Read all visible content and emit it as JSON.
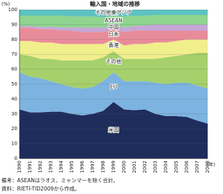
{
  "chart_data": {
    "type": "stacked_area",
    "title": "輸入国・地域の推移",
    "ylabel": "(%)",
    "xlabel": "(年)",
    "categories": [
      "1990",
      "1991",
      "1992",
      "1993",
      "1994",
      "1995",
      "1996",
      "1997",
      "1998",
      "1999",
      "2000",
      "2001",
      "2002",
      "2003",
      "2004",
      "2005",
      "2006",
      "2007",
      "2008"
    ],
    "series": [
      {
        "name": "米国",
        "color": "#1f2d5c",
        "values": [
          33,
          31,
          31,
          31.5,
          31.5,
          30,
          29,
          30,
          32,
          38,
          33,
          32.5,
          33,
          30,
          28.5,
          28.5,
          28,
          25.5,
          23.5
        ]
      },
      {
        "name": "EU",
        "color": "#7db3e0",
        "values": [
          25,
          24,
          23,
          20.5,
          18.5,
          18,
          18,
          18,
          20,
          20,
          19,
          19.5,
          19,
          21,
          21.5,
          22.5,
          23,
          23.5,
          23.5
        ]
      },
      {
        "name": "その他",
        "color": "#a6d06b",
        "values": [
          12,
          14,
          13,
          15,
          16,
          18,
          19,
          18,
          16,
          14,
          15,
          15,
          15,
          16,
          18,
          18,
          19,
          22,
          24
        ]
      },
      {
        "name": "香港",
        "color": "#f1ee8c",
        "values": [
          9,
          10,
          11,
          11,
          11,
          11,
          11,
          11,
          9,
          8,
          9,
          10,
          10,
          11,
          10,
          10,
          10,
          9,
          9
        ]
      },
      {
        "name": "日本",
        "color": "#e98c9a",
        "values": [
          9,
          9,
          9,
          9,
          9,
          9,
          8,
          8,
          8,
          7,
          9,
          9,
          9,
          8,
          8,
          7,
          6,
          6,
          6
        ]
      },
      {
        "name": "中国",
        "color": "#c6a6d6",
        "values": [
          1,
          1,
          1.5,
          1.5,
          2,
          2,
          3,
          3,
          3,
          2,
          3,
          3,
          3.5,
          4,
          4,
          4,
          4,
          4,
          4
        ]
      },
      {
        "name": "ASEAN",
        "color": "#8fd48f",
        "values": [
          7,
          7,
          7.5,
          7.5,
          8,
          7.5,
          7.5,
          7.5,
          7,
          7,
          7.5,
          7,
          6.5,
          6.5,
          6.5,
          6.5,
          6.5,
          6.5,
          6.5
        ]
      },
      {
        "name": "その他東アジア",
        "color": "#5cc2c2",
        "values": [
          4,
          4,
          4,
          4,
          4,
          4.5,
          4.5,
          4.5,
          5,
          4,
          4.5,
          4,
          4,
          3.5,
          3.5,
          3.5,
          3.5,
          3.5,
          3.5
        ]
      }
    ],
    "ylim": [
      0,
      100
    ],
    "yticks": [
      0,
      10,
      20,
      30,
      40,
      50,
      60,
      70,
      80,
      90,
      100
    ],
    "grid": true,
    "notes": [
      "備考：ASEANはラオス、ミャンマーを除く合計。",
      "資料：RIETI-TID2009から作成。"
    ]
  }
}
